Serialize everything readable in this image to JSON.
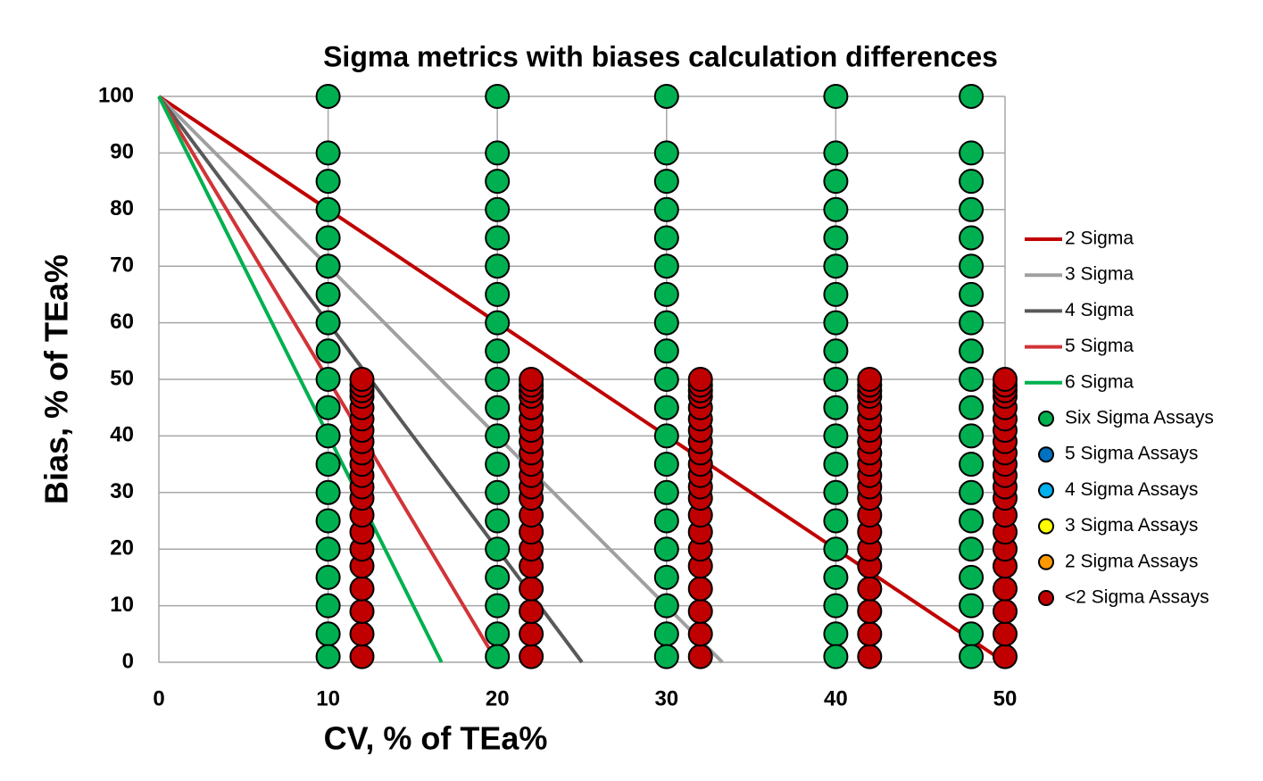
{
  "chart_data": {
    "type": "scatter",
    "title": "Sigma metrics with biases calculation differences",
    "x_label": "CV, % of TEa%",
    "y_label": "Bias, % of TEa%",
    "xlim": [
      0,
      50
    ],
    "xticks": [
      0,
      10,
      20,
      30,
      40,
      50
    ],
    "ylim": [
      0,
      100
    ],
    "yticks": [
      0,
      10,
      20,
      30,
      40,
      50,
      60,
      70,
      80,
      90,
      100
    ],
    "grid": true,
    "legend": "right",
    "series": [
      {
        "name": "2 Sigma",
        "kind": "line",
        "color": "#c00000",
        "x": [
          0,
          50
        ],
        "values": [
          100,
          0
        ]
      },
      {
        "name": "3 Sigma",
        "kind": "line",
        "color": "#a0a0a0",
        "x": [
          0,
          33.3
        ],
        "values": [
          100,
          0
        ]
      },
      {
        "name": "4 Sigma",
        "kind": "line",
        "color": "#595959",
        "x": [
          0,
          25
        ],
        "values": [
          100,
          0
        ]
      },
      {
        "name": "5 Sigma",
        "kind": "line",
        "color": "#d13438",
        "x": [
          0,
          20
        ],
        "values": [
          100,
          0
        ]
      },
      {
        "name": "6 Sigma",
        "kind": "line",
        "color": "#00b050",
        "x": [
          0,
          16.7
        ],
        "values": [
          100,
          0
        ]
      },
      {
        "name": "Six Sigma Assays",
        "kind": "marker",
        "color": "#00b050",
        "x": [
          10,
          10,
          10,
          10,
          10,
          10,
          10,
          10,
          10,
          10,
          10,
          10,
          10,
          10,
          10,
          10,
          10,
          10,
          10,
          10,
          20,
          20,
          20,
          20,
          20,
          20,
          20,
          20,
          20,
          20,
          20,
          20,
          20,
          20,
          20,
          20,
          20,
          20,
          20,
          20,
          30,
          30,
          30,
          30,
          30,
          30,
          30,
          30,
          30,
          30,
          30,
          30,
          30,
          30,
          30,
          30,
          30,
          30,
          30,
          30,
          40,
          40,
          40,
          40,
          40,
          40,
          40,
          40,
          40,
          40,
          40,
          40,
          40,
          40,
          40,
          40,
          40,
          40,
          40,
          40,
          48,
          48,
          48,
          48,
          48,
          48,
          48,
          48,
          48,
          48,
          48,
          48,
          48,
          48,
          48,
          48,
          48,
          48,
          48,
          48
        ],
        "values": [
          100,
          90,
          85,
          80,
          75,
          70,
          65,
          60,
          55,
          50,
          45,
          40,
          35,
          30,
          25,
          20,
          15,
          10,
          5,
          1,
          100,
          90,
          85,
          80,
          75,
          70,
          65,
          60,
          55,
          50,
          45,
          40,
          35,
          30,
          25,
          20,
          15,
          10,
          5,
          1,
          100,
          90,
          85,
          80,
          75,
          70,
          65,
          60,
          55,
          50,
          45,
          40,
          35,
          30,
          25,
          20,
          15,
          10,
          5,
          1,
          100,
          90,
          85,
          80,
          75,
          70,
          65,
          60,
          55,
          50,
          45,
          40,
          35,
          30,
          25,
          20,
          15,
          10,
          5,
          1,
          100,
          90,
          85,
          80,
          75,
          70,
          65,
          60,
          55,
          50,
          45,
          40,
          35,
          30,
          25,
          20,
          15,
          10,
          5,
          1
        ]
      },
      {
        "name": "5 Sigma Assays",
        "kind": "marker",
        "color": "#0070c0",
        "x": [],
        "values": []
      },
      {
        "name": "4 Sigma Assays",
        "kind": "marker",
        "color": "#00b0f0",
        "x": [],
        "values": []
      },
      {
        "name": "3 Sigma Assays",
        "kind": "marker",
        "color": "#ffff00",
        "x": [],
        "values": []
      },
      {
        "name": "2 Sigma Assays",
        "kind": "marker",
        "color": "#ff9900",
        "x": [],
        "values": []
      },
      {
        "name": "<2 Sigma Assays",
        "kind": "marker",
        "color": "#c00000",
        "x": [
          12,
          12,
          12,
          12,
          12,
          12,
          12,
          12,
          12,
          12,
          12,
          12,
          12,
          12,
          12,
          12,
          12,
          12,
          12,
          12,
          12,
          22,
          22,
          22,
          22,
          22,
          22,
          22,
          22,
          22,
          22,
          22,
          22,
          22,
          22,
          22,
          22,
          22,
          22,
          22,
          22,
          22,
          32,
          32,
          32,
          32,
          32,
          32,
          32,
          32,
          32,
          32,
          32,
          32,
          32,
          32,
          32,
          32,
          32,
          32,
          32,
          32,
          32,
          42,
          42,
          42,
          42,
          42,
          42,
          42,
          42,
          42,
          42,
          42,
          42,
          42,
          42,
          42,
          42,
          42,
          42,
          42,
          42,
          42,
          50,
          50,
          50,
          50,
          50,
          50,
          50,
          50,
          50,
          50,
          50,
          50,
          50,
          50,
          50,
          50,
          50,
          50,
          50,
          50,
          50
        ],
        "values": [
          1,
          5,
          9,
          13,
          17,
          20,
          23,
          26,
          29,
          31,
          33,
          35,
          37,
          39,
          41,
          43,
          45,
          47,
          48,
          49,
          50,
          1,
          5,
          9,
          13,
          17,
          20,
          23,
          26,
          29,
          31,
          33,
          35,
          37,
          39,
          41,
          43,
          45,
          47,
          48,
          49,
          50,
          1,
          5,
          9,
          13,
          17,
          20,
          23,
          26,
          29,
          31,
          33,
          35,
          37,
          39,
          41,
          43,
          45,
          47,
          48,
          49,
          50,
          1,
          5,
          9,
          13,
          17,
          20,
          23,
          26,
          29,
          31,
          33,
          35,
          37,
          39,
          41,
          43,
          45,
          47,
          48,
          49,
          50,
          1,
          5,
          9,
          13,
          17,
          20,
          23,
          26,
          29,
          31,
          33,
          35,
          37,
          39,
          41,
          43,
          45,
          47,
          48,
          49,
          50
        ]
      }
    ]
  }
}
